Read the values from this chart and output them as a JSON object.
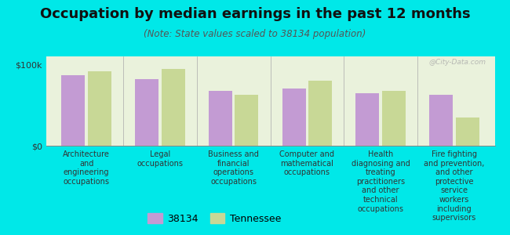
{
  "title": "Occupation by median earnings in the past 12 months",
  "subtitle": "(Note: State values scaled to 38134 population)",
  "background_color": "#00e8e8",
  "plot_bg_color": "#eaf2dc",
  "categories": [
    "Architecture\nand\nengineering\noccupations",
    "Legal\noccupations",
    "Business and\nfinancial\noperations\noccupations",
    "Computer and\nmathematical\noccupations",
    "Health\ndiagnosing and\ntreating\npractitioners\nand other\ntechnical\noccupations",
    "Fire fighting\nand prevention,\nand other\nprotective\nservice\nworkers\nincluding\nsupervisors"
  ],
  "values_38134": [
    87000,
    82000,
    68000,
    70000,
    65000,
    63000
  ],
  "values_tennessee": [
    92000,
    95000,
    63000,
    80000,
    68000,
    35000
  ],
  "color_38134": "#c39bd3",
  "color_tennessee": "#c8d896",
  "ylim": [
    0,
    110000
  ],
  "ytick_labels": [
    "$0",
    "$100k"
  ],
  "legend_label_38134": "38134",
  "legend_label_tennessee": "Tennessee",
  "title_fontsize": 13,
  "subtitle_fontsize": 8.5,
  "label_fontsize": 7,
  "watermark": "@City-Data.com"
}
